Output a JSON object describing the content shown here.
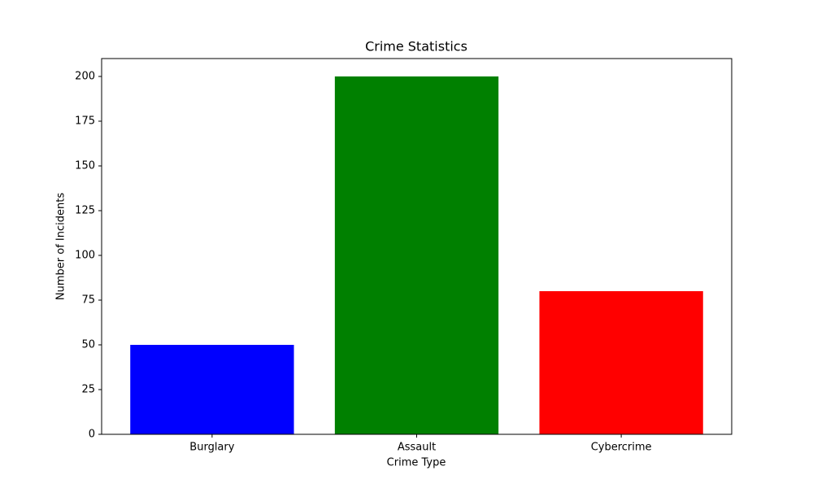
{
  "chart_data": {
    "type": "bar",
    "title": "Crime Statistics",
    "x_label": "Crime Type",
    "y_label": "Number of Incidents",
    "categories": [
      "Burglary",
      "Assault",
      "Cybercrime"
    ],
    "values": [
      50,
      200,
      80
    ],
    "colors": [
      "#0000ff",
      "#008000",
      "#ff0000"
    ],
    "ylim": [
      0,
      210
    ],
    "yticks": [
      0,
      25,
      50,
      75,
      100,
      125,
      150,
      175,
      200
    ],
    "grid": false
  }
}
